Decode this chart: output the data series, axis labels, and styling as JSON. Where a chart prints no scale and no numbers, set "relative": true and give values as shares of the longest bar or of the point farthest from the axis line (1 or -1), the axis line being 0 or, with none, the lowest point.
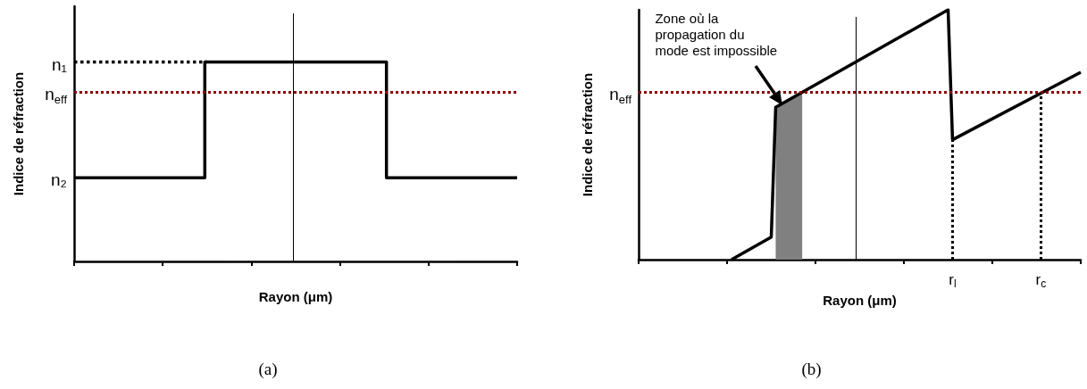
{
  "chart_data": [
    {
      "type": "step",
      "title": "(a)",
      "xlabel": "Rayon (μm)",
      "ylabel": "Indice de réfraction",
      "relative": true,
      "tick_labels": false,
      "marker": "none",
      "categories": [
        null,
        null,
        null,
        null,
        null,
        null,
        null,
        null,
        null,
        null,
        null,
        null,
        null,
        null,
        null,
        null,
        null,
        null,
        null,
        null,
        null,
        null,
        null,
        null,
        null,
        null,
        null,
        null,
        null,
        null,
        null,
        null,
        null,
        null,
        null,
        null,
        null,
        null,
        null,
        null,
        null,
        null,
        null,
        null,
        null,
        null,
        null,
        null,
        null,
        null,
        null,
        null,
        null,
        null,
        null,
        null,
        null,
        null,
        null,
        null,
        null,
        null,
        null,
        null,
        null,
        null,
        null,
        null,
        null,
        null,
        null,
        null,
        null,
        null,
        null,
        null,
        null,
        null,
        null,
        null,
        null,
        null,
        null,
        null,
        null,
        null,
        null,
        null,
        null,
        null,
        null,
        null,
        null,
        null,
        null,
        null,
        null,
        null,
        null,
        null,
        null
      ],
      "series": [
        {
          "type": "line",
          "color": "#000000",
          "line_style": "dotted",
          "values": [
            1,
            null,
            null,
            null,
            null,
            null,
            null,
            null,
            null,
            null,
            null,
            null,
            null,
            null,
            null,
            null,
            null,
            null,
            null,
            null,
            null,
            null,
            null,
            null,
            null,
            null,
            null,
            null,
            null,
            null,
            1,
            null,
            null,
            null,
            null,
            null,
            null,
            null,
            null,
            null,
            null,
            null,
            null,
            null,
            null,
            null,
            null,
            null,
            null,
            null,
            null,
            null,
            null,
            null,
            null,
            null,
            null,
            null,
            null,
            null,
            null,
            null,
            null,
            null,
            null,
            null,
            null,
            null,
            null,
            null,
            null,
            null,
            null,
            null,
            null,
            null,
            null,
            null,
            null,
            null,
            null,
            null,
            null,
            null,
            null,
            null,
            null,
            null,
            null,
            null,
            null,
            null,
            null,
            null,
            null,
            null,
            null,
            null,
            null,
            null,
            null
          ]
        },
        {
          "color": "#000000",
          "line_style": "solid",
          "values": [
            0.42,
            null,
            null,
            null,
            null,
            null,
            null,
            null,
            null,
            null,
            null,
            null,
            null,
            null,
            null,
            null,
            null,
            null,
            null,
            null,
            null,
            null,
            null,
            null,
            null,
            null,
            null,
            null,
            null,
            0.42,
            1,
            null,
            null,
            null,
            null,
            null,
            null,
            null,
            null,
            null,
            null,
            null,
            null,
            null,
            null,
            null,
            null,
            null,
            null,
            null,
            null,
            null,
            null,
            null,
            null,
            null,
            null,
            null,
            null,
            null,
            null,
            null,
            null,
            null,
            null,
            null,
            null,
            null,
            null,
            null,
            1,
            0.42,
            null,
            null,
            null,
            null,
            null,
            null,
            null,
            null,
            null,
            null,
            null,
            null,
            null,
            null,
            null,
            null,
            null,
            null,
            null,
            null,
            null,
            null,
            null,
            null,
            null,
            null,
            null,
            null,
            0.42
          ]
        }
      ],
      "ref_lines": [
        {
          "axis": "y",
          "value": 0.85,
          "label": "n$_{eff}$",
          "color": "#8b0000",
          "line_style": "dotted"
        }
      ],
      "annotations": [
        "n₁",
        "n₂"
      ]
    },
    {
      "type": "line",
      "title": "(b)",
      "xlabel": "Rayon (μm)",
      "ylabel": "Indice de réfraction",
      "relative": true,
      "tick_labels": "x",
      "marker": "none",
      "categories": [
        null,
        null,
        null,
        null,
        null,
        null,
        null,
        null,
        null,
        null,
        null,
        null,
        null,
        null,
        null,
        null,
        null,
        null,
        null,
        null,
        null,
        null,
        null,
        null,
        null,
        null,
        null,
        null,
        null,
        null,
        null,
        null,
        null,
        null,
        null,
        null,
        null,
        null,
        null,
        null,
        null,
        null,
        null,
        null,
        null,
        null,
        null,
        null,
        null,
        null,
        null,
        null,
        null,
        null,
        null,
        null,
        null,
        null,
        null,
        null,
        null,
        null,
        null,
        null,
        null,
        null,
        null,
        null,
        null,
        null,
        null,
        "r$_{l}$",
        null,
        null,
        null,
        null,
        null,
        null,
        null,
        null,
        null,
        null,
        null,
        null,
        null,
        null,
        null,
        null,
        null,
        null,
        null,
        "r$_{c}$",
        null,
        null,
        null,
        null,
        null,
        null,
        null,
        null,
        null
      ],
      "series": [
        {
          "type": "area",
          "color": "#808080",
          "line_style": "solid",
          "values": [
            null,
            null,
            null,
            null,
            null,
            null,
            null,
            null,
            null,
            null,
            null,
            null,
            null,
            null,
            null,
            null,
            null,
            null,
            null,
            null,
            null,
            null,
            null,
            null,
            null,
            null,
            null,
            null,
            null,
            null,
            null,
            0.61,
            null,
            null,
            null,
            null,
            null,
            0.67,
            null,
            null,
            null,
            null,
            null,
            null,
            null,
            null,
            null,
            null,
            null,
            null,
            null,
            null,
            null,
            null,
            null,
            null,
            null,
            null,
            null,
            null,
            null,
            null,
            null,
            null,
            null,
            null,
            null,
            null,
            null,
            null,
            null,
            null,
            null,
            null,
            null,
            null,
            null,
            null,
            null,
            null,
            null,
            null,
            null,
            null,
            null,
            null,
            null,
            null,
            null,
            null,
            null,
            null,
            null,
            null,
            null,
            null,
            null,
            null,
            null,
            null,
            null
          ]
        },
        {
          "color": "#000000",
          "line_style": "solid",
          "values": [
            null,
            null,
            null,
            null,
            null,
            null,
            null,
            null,
            null,
            null,
            null,
            null,
            null,
            null,
            null,
            null,
            null,
            null,
            null,
            null,
            null,
            0,
            null,
            null,
            null,
            null,
            null,
            null,
            null,
            null,
            0.09,
            0.61,
            null,
            null,
            null,
            null,
            null,
            null,
            null,
            null,
            null,
            null,
            null,
            null,
            null,
            null,
            null,
            null,
            null,
            null,
            null,
            null,
            null,
            null,
            null,
            null,
            null,
            null,
            null,
            null,
            null,
            null,
            null,
            null,
            null,
            null,
            null,
            null,
            null,
            null,
            1,
            0.48,
            null,
            null,
            null,
            null,
            null,
            null,
            null,
            null,
            null,
            null,
            null,
            null,
            null,
            null,
            null,
            null,
            null,
            null,
            null,
            null,
            null,
            null,
            null,
            null,
            null,
            null,
            null,
            null,
            0.75
          ]
        }
      ],
      "ref_lines": [
        {
          "axis": "y",
          "value": 0.67,
          "label": "n$_{eff}$",
          "color": "#8b0000",
          "line_style": "dotted"
        },
        {
          "axis": "x",
          "value": "r$_{l}$",
          "color": "#000000",
          "line_style": "dotted"
        },
        {
          "axis": "x",
          "value": "r$_{c}$",
          "color": "#000000",
          "line_style": "dotted"
        }
      ],
      "annotations": [
        "Zone où la propagation du mode est impossible"
      ]
    }
  ]
}
